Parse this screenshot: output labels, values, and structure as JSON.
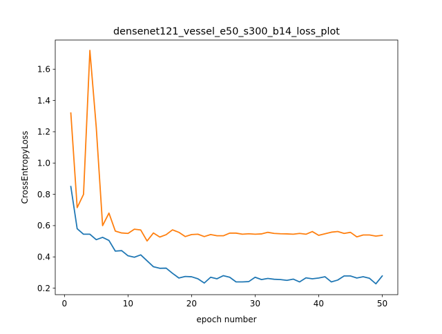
{
  "chart_data": {
    "type": "line",
    "title": "densenet121_vessel_e50_s300_b14_loss_plot",
    "xlabel": "epoch number",
    "ylabel": "CrossEntropyLoss",
    "xlim": [
      -1.45,
      52.45
    ],
    "ylim": [
      0.1585,
      1.7865
    ],
    "x_ticks": [
      0,
      10,
      20,
      30,
      40,
      50
    ],
    "y_ticks": [
      0.2,
      0.4,
      0.6,
      0.8,
      1.0,
      1.2,
      1.4,
      1.6
    ],
    "x_tick_labels": [
      "0",
      "10",
      "20",
      "30",
      "40",
      "50"
    ],
    "y_tick_labels": [
      "0.2",
      "0.4",
      "0.6",
      "0.8",
      "1.0",
      "1.2",
      "1.4",
      "1.6"
    ],
    "grid": false,
    "x": [
      1,
      2,
      3,
      4,
      5,
      6,
      7,
      8,
      9,
      10,
      11,
      12,
      13,
      14,
      15,
      16,
      17,
      18,
      19,
      20,
      21,
      22,
      23,
      24,
      25,
      26,
      27,
      28,
      29,
      30,
      31,
      32,
      33,
      34,
      35,
      36,
      37,
      38,
      39,
      40,
      41,
      42,
      43,
      44,
      45,
      46,
      47,
      48,
      49,
      50
    ],
    "series": [
      {
        "color": "#1f77b4",
        "values": [
          0.85,
          0.58,
          0.545,
          0.545,
          0.51,
          0.525,
          0.505,
          0.437,
          0.44,
          0.407,
          0.398,
          0.413,
          0.375,
          0.337,
          0.327,
          0.328,
          0.295,
          0.265,
          0.275,
          0.273,
          0.26,
          0.233,
          0.27,
          0.26,
          0.28,
          0.27,
          0.24,
          0.24,
          0.242,
          0.27,
          0.255,
          0.262,
          0.257,
          0.255,
          0.25,
          0.258,
          0.24,
          0.266,
          0.26,
          0.265,
          0.273,
          0.24,
          0.252,
          0.278,
          0.278,
          0.265,
          0.273,
          0.263,
          0.228,
          0.278
        ]
      },
      {
        "color": "#ff7f0e",
        "values": [
          1.32,
          0.715,
          0.8,
          1.72,
          1.23,
          0.6,
          0.68,
          0.565,
          0.553,
          0.55,
          0.577,
          0.572,
          0.502,
          0.553,
          0.527,
          0.542,
          0.573,
          0.557,
          0.53,
          0.543,
          0.545,
          0.53,
          0.543,
          0.535,
          0.535,
          0.552,
          0.552,
          0.545,
          0.548,
          0.545,
          0.547,
          0.557,
          0.55,
          0.548,
          0.547,
          0.545,
          0.55,
          0.545,
          0.562,
          0.538,
          0.548,
          0.558,
          0.562,
          0.55,
          0.557,
          0.528,
          0.54,
          0.54,
          0.533,
          0.538
        ]
      }
    ]
  }
}
